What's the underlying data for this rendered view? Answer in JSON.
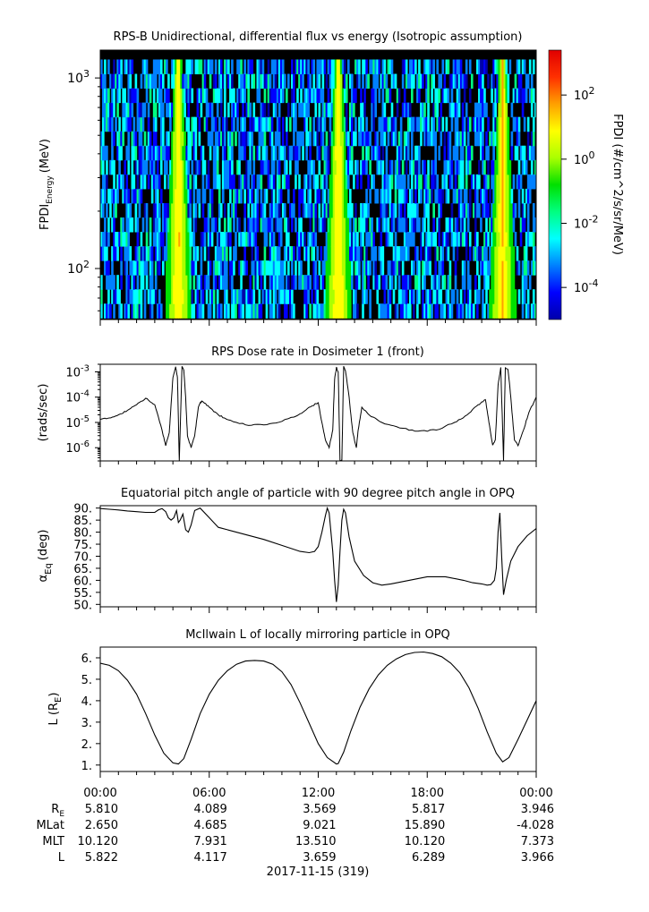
{
  "chart_data": [
    {
      "type": "heatmap",
      "title": "RPS-B  Unidirectional, differential flux vs energy (Isotropic assumption)",
      "ylabel_main": "FPDI",
      "ylabel_sub": "Energy",
      "ylabel_unit": "(MeV)",
      "y_scale": "log",
      "ylim": [
        54,
        1400
      ],
      "y_ticks": [
        {
          "value": 100,
          "base": "10",
          "exp": "2"
        },
        {
          "value": 1000,
          "base": "10",
          "exp": "3"
        }
      ],
      "x_range_hours": [
        0,
        24
      ],
      "colorbar": {
        "label": "FPDI (#/cm^2/s/sr/MeV)",
        "scale": "log",
        "range_exp": [
          -5,
          3.4
        ],
        "ticks": [
          {
            "exp": -4,
            "base": "10",
            "sup": "-4"
          },
          {
            "exp": -2,
            "base": "10",
            "sup": "-2"
          },
          {
            "exp": 0,
            "base": "10",
            "sup": "0"
          },
          {
            "exp": 2,
            "base": "10",
            "sup": "2"
          }
        ],
        "colors": [
          "#0000aa",
          "#0000ff",
          "#0080ff",
          "#00ffff",
          "#00ff80",
          "#00e000",
          "#aaff00",
          "#ffff00",
          "#ffa000",
          "#ff3000",
          "#e00000"
        ]
      },
      "perigee_hours": [
        4.3,
        13.1,
        22.15
      ],
      "background_color": "#000000"
    },
    {
      "type": "line",
      "title": "RPS  Dose rate in Dosimeter 1 (front)",
      "ylabel": "(rads/sec)",
      "y_scale": "log",
      "ylim": [
        3e-07,
        0.002
      ],
      "y_ticks": [
        {
          "value": 1e-06,
          "base": "10",
          "exp": "-6"
        },
        {
          "value": 1e-05,
          "base": "10",
          "exp": "-5"
        },
        {
          "value": 0.0001,
          "base": "10",
          "exp": "-4"
        },
        {
          "value": 0.001,
          "base": "10",
          "exp": "-3"
        }
      ],
      "x": [
        0,
        0.5,
        1,
        1.5,
        2,
        2.5,
        3,
        3.4,
        3.6,
        3.8,
        3.9,
        4.0,
        4.15,
        4.25,
        4.35,
        4.5,
        4.6,
        4.7,
        4.8,
        5.0,
        5.2,
        5.4,
        5.5,
        5.6,
        6.0,
        6.5,
        7,
        8,
        9,
        10,
        11,
        11.5,
        12,
        12.2,
        12.4,
        12.6,
        12.8,
        12.9,
        13.0,
        13.1,
        13.2,
        13.3,
        13.4,
        13.5,
        13.7,
        13.9,
        14.1,
        14.2,
        14.4,
        14.8,
        15.5,
        16.5,
        17.5,
        18.5,
        19.5,
        20.2,
        20.8,
        21.2,
        21.4,
        21.6,
        21.75,
        21.9,
        22.05,
        22.2,
        22.3,
        22.45,
        22.6,
        22.8,
        23.0,
        23.3,
        23.6,
        24
      ],
      "values": [
        1.3e-05,
        1.5e-05,
        2e-05,
        3e-05,
        5e-05,
        9e-05,
        5e-05,
        5e-06,
        1.2e-06,
        4e-06,
        5e-05,
        0.0006,
        0.0016,
        0.0006,
        3e-07,
        0.0016,
        0.0012,
        0.0001,
        3e-06,
        1e-06,
        3e-06,
        4e-05,
        6e-05,
        7e-05,
        4e-05,
        2e-05,
        1.3e-05,
        8e-06,
        8e-06,
        1.1e-05,
        2.2e-05,
        4e-05,
        6e-05,
        1e-05,
        2e-06,
        1e-06,
        5e-06,
        0.0005,
        0.0015,
        0.001,
        3e-07,
        3e-07,
        0.0016,
        0.0011,
        0.0001,
        4e-06,
        1e-06,
        5e-06,
        4e-05,
        2e-05,
        1e-05,
        6e-06,
        4.5e-06,
        5e-06,
        1e-05,
        2e-05,
        5e-05,
        8e-05,
        1e-05,
        1.3e-06,
        2e-06,
        0.0003,
        0.0015,
        3e-07,
        0.0015,
        0.0012,
        0.0001,
        2e-06,
        1.2e-06,
        5e-06,
        2.5e-05,
        0.0001
      ]
    },
    {
      "type": "line",
      "title": "Equatorial pitch angle of particle with 90 degree pitch angle in OPQ",
      "ylabel_main": "α",
      "ylabel_sub": "Eq",
      "ylabel_unit": "(deg)",
      "ylim": [
        49,
        91
      ],
      "y_ticks": [
        50,
        55,
        60,
        65,
        70,
        75,
        80,
        85,
        90
      ],
      "x": [
        0,
        0.5,
        1,
        1.5,
        2,
        2.5,
        3,
        3.2,
        3.4,
        3.6,
        3.75,
        3.9,
        4.05,
        4.2,
        4.3,
        4.4,
        4.55,
        4.7,
        4.85,
        5.0,
        5.2,
        5.5,
        6,
        6.5,
        7,
        8,
        9,
        10,
        11,
        11.5,
        11.8,
        12.0,
        12.2,
        12.4,
        12.5,
        12.6,
        12.7,
        12.8,
        12.9,
        13.0,
        13.1,
        13.2,
        13.3,
        13.4,
        13.5,
        13.7,
        14,
        14.5,
        15,
        15.5,
        16,
        17,
        18,
        19,
        20,
        20.5,
        21,
        21.3,
        21.5,
        21.7,
        21.8,
        21.9,
        22.0,
        22.1,
        22.2,
        22.35,
        22.6,
        23,
        23.5,
        24
      ],
      "values": [
        89.8,
        89.5,
        89.2,
        88.8,
        88.5,
        88.2,
        88.2,
        89.2,
        89.8,
        88.5,
        86,
        85,
        86,
        89,
        84,
        85,
        87.5,
        81,
        80,
        83,
        89,
        90,
        86,
        82,
        81,
        79,
        77,
        74.5,
        72,
        71.5,
        72,
        74,
        80,
        87,
        90,
        88,
        80,
        72,
        60,
        51,
        58,
        72,
        85,
        89.5,
        88,
        78,
        68,
        62,
        59,
        58,
        58.5,
        60,
        61.5,
        61.5,
        60,
        59,
        58.5,
        58,
        58.2,
        60,
        65,
        80,
        88,
        70,
        54,
        60,
        68,
        74,
        78.5,
        81.5
      ]
    },
    {
      "type": "line",
      "title": "McIlwain L of locally mirroring particle in OPQ",
      "ylabel_main": "L (R",
      "ylabel_sub": "E",
      "ylabel_unit": ")",
      "ylim": [
        0.7,
        6.5
      ],
      "y_ticks": [
        1,
        2,
        3,
        4,
        5,
        6
      ],
      "x": [
        0,
        0.5,
        1,
        1.5,
        2,
        2.5,
        3,
        3.5,
        4,
        4.3,
        4.6,
        5,
        5.5,
        6,
        6.5,
        7,
        7.5,
        8,
        8.5,
        9,
        9.5,
        10,
        10.5,
        11,
        11.5,
        12,
        12.5,
        13,
        13.1,
        13.4,
        13.8,
        14.3,
        14.8,
        15.3,
        15.8,
        16.3,
        16.8,
        17.3,
        17.8,
        18.3,
        18.8,
        19.3,
        19.8,
        20.3,
        20.8,
        21.3,
        21.8,
        22.15,
        22.5,
        23,
        23.5,
        24
      ],
      "values": [
        5.75,
        5.65,
        5.4,
        4.95,
        4.3,
        3.4,
        2.4,
        1.55,
        1.1,
        1.05,
        1.3,
        2.2,
        3.4,
        4.3,
        4.95,
        5.4,
        5.7,
        5.85,
        5.88,
        5.85,
        5.7,
        5.35,
        4.75,
        3.9,
        2.95,
        2.0,
        1.35,
        1.05,
        1.07,
        1.6,
        2.6,
        3.7,
        4.55,
        5.2,
        5.65,
        5.95,
        6.15,
        6.25,
        6.27,
        6.2,
        6.05,
        5.75,
        5.3,
        4.6,
        3.65,
        2.55,
        1.55,
        1.15,
        1.35,
        2.2,
        3.1,
        4.0
      ]
    }
  ],
  "x_axis": {
    "tick_labels": [
      "00:00",
      "06:00",
      "12:00",
      "18:00",
      "00:00"
    ],
    "tick_hours": [
      0,
      6,
      12,
      18,
      24
    ]
  },
  "ephemeris": {
    "rows": [
      {
        "label": "R",
        "label_sub": "E",
        "values": [
          "5.810",
          "4.089",
          "3.569",
          "5.817",
          "3.946"
        ]
      },
      {
        "label": "MLat",
        "label_sub": "",
        "values": [
          "2.650",
          "4.685",
          "9.021",
          "15.890",
          "-4.028"
        ]
      },
      {
        "label": "MLT",
        "label_sub": "",
        "values": [
          "10.120",
          "7.931",
          "13.510",
          "10.120",
          "7.373"
        ]
      },
      {
        "label": "L",
        "label_sub": "",
        "values": [
          "5.822",
          "4.117",
          "3.659",
          "6.289",
          "3.966"
        ]
      }
    ]
  },
  "date_label": "2017-11-15 (319)"
}
